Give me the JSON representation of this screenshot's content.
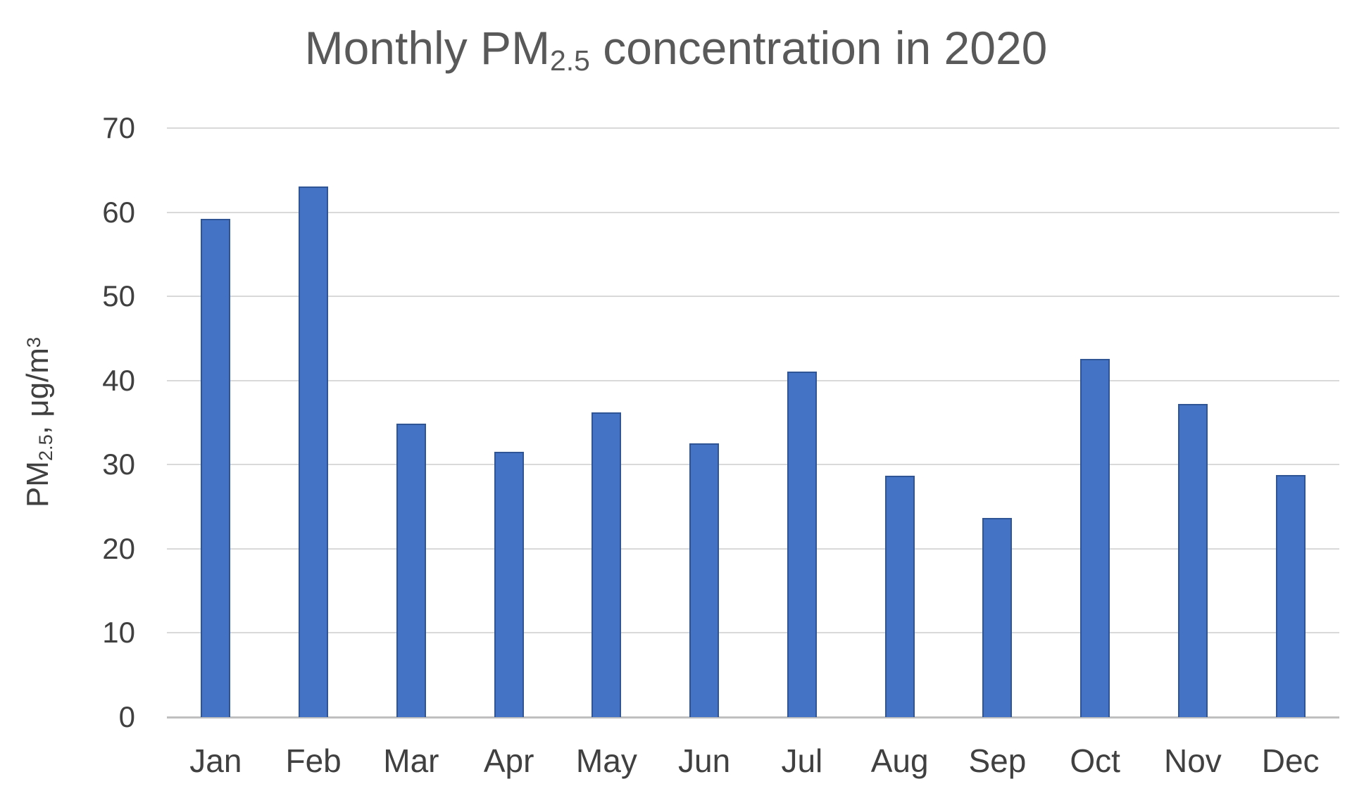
{
  "title": {
    "prefix": "Monthly PM",
    "sub": "2.5",
    "suffix": " concentration in 2020"
  },
  "y_axis_title": {
    "prefix": "PM",
    "sub": "2.5",
    "mid": ", μg/m",
    "sup": "3"
  },
  "chart_data": {
    "type": "bar",
    "title": "Monthly PM2.5 concentration in 2020",
    "categories": [
      "Jan",
      "Feb",
      "Mar",
      "Apr",
      "May",
      "Jun",
      "Jul",
      "Aug",
      "Sep",
      "Oct",
      "Nov",
      "Dec"
    ],
    "values": [
      59.2,
      63.1,
      34.9,
      31.5,
      36.2,
      32.5,
      41.1,
      28.7,
      23.7,
      42.6,
      37.2,
      28.8
    ],
    "xlabel": "",
    "ylabel": "PM2.5, μg/m³",
    "ylim": [
      0,
      70
    ],
    "yticks": [
      0,
      10,
      20,
      30,
      40,
      50,
      60,
      70
    ],
    "grid": true,
    "legend": false,
    "bar_color": "#4472C4",
    "bar_border_color": "#2F5597",
    "gridline_color": "#D9D9D9",
    "axis_line_color": "#BFBFBF",
    "title_color": "#595959",
    "tick_label_color": "#404040"
  }
}
